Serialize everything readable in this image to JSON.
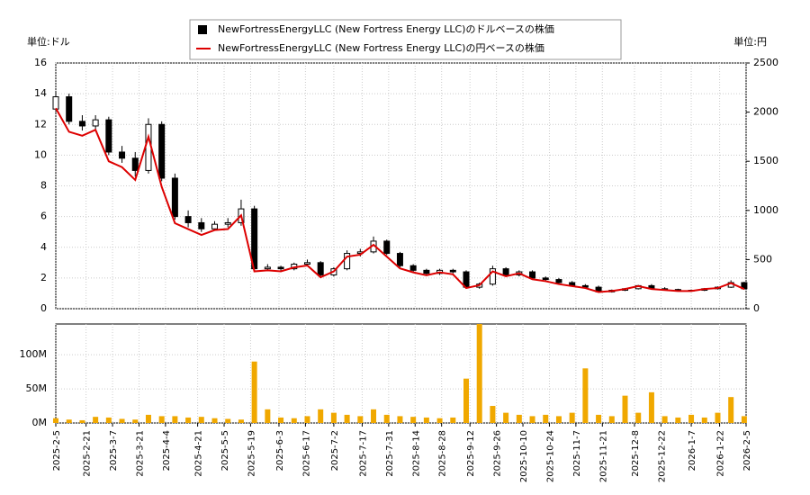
{
  "chart_data": [
    {
      "type": "candlestick",
      "unit_left": "単位:ドル",
      "unit_right": "単位:円",
      "legend": "top",
      "x": [
        "2025-2-5",
        "2025-2-12",
        "2025-2-19",
        "2025-2-26",
        "2025-3-5",
        "2025-3-12",
        "2025-3-19",
        "2025-3-26",
        "2025-4-2",
        "2025-4-9",
        "2025-4-16",
        "2025-4-23",
        "2025-4-30",
        "2025-5-7",
        "2025-5-14",
        "2025-5-21",
        "2025-5-28",
        "2025-6-4",
        "2025-6-11",
        "2025-6-18",
        "2025-6-25",
        "2025-7-2",
        "2025-7-9",
        "2025-7-16",
        "2025-7-23",
        "2025-7-30",
        "2025-8-6",
        "2025-8-13",
        "2025-8-20",
        "2025-8-27",
        "2025-9-3",
        "2025-9-10",
        "2025-9-17",
        "2025-9-24",
        "2025-10-1",
        "2025-10-8",
        "2025-10-15",
        "2025-10-22",
        "2025-10-29",
        "2025-11-5",
        "2025-11-12",
        "2025-11-19",
        "2025-11-26",
        "2025-12-3",
        "2025-12-10",
        "2025-12-17",
        "2025-12-24",
        "2025-12-31",
        "2026-1-7",
        "2026-1-14",
        "2026-1-21",
        "2026-1-28",
        "2026-2-4"
      ],
      "series": [
        {
          "name": "NewFortressEnergyLLC (New Fortress Energy LLC)のドルベースの株価",
          "color": "#000000",
          "open": [
            13.0,
            13.8,
            12.2,
            11.9,
            12.3,
            10.2,
            9.8,
            9.0,
            12.0,
            8.5,
            6.0,
            5.6,
            5.2,
            5.5,
            5.6,
            6.5,
            2.6,
            2.7,
            2.6,
            2.9,
            3.0,
            2.2,
            2.6,
            3.6,
            3.7,
            4.4,
            3.6,
            2.8,
            2.5,
            2.3,
            2.5,
            2.4,
            1.4,
            1.6,
            2.6,
            2.2,
            2.4,
            2.0,
            1.9,
            1.7,
            1.5,
            1.4,
            1.1,
            1.2,
            1.3,
            1.5,
            1.3,
            1.25,
            1.2,
            1.2,
            1.3,
            1.4,
            1.7
          ],
          "high": [
            14.1,
            14.0,
            12.6,
            12.6,
            12.5,
            10.6,
            10.2,
            12.4,
            12.2,
            8.8,
            6.4,
            5.9,
            5.7,
            5.9,
            7.1,
            6.7,
            2.9,
            2.8,
            3.0,
            3.2,
            3.1,
            2.7,
            3.8,
            3.9,
            4.7,
            4.5,
            3.7,
            2.9,
            2.6,
            2.6,
            2.6,
            2.5,
            1.7,
            2.8,
            2.7,
            2.5,
            2.5,
            2.1,
            2.0,
            1.8,
            1.6,
            1.5,
            1.25,
            1.35,
            1.55,
            1.6,
            1.4,
            1.3,
            1.25,
            1.35,
            1.45,
            1.85,
            1.75
          ],
          "low": [
            12.8,
            12.0,
            11.6,
            11.7,
            10.0,
            9.5,
            8.6,
            8.8,
            8.3,
            5.8,
            5.3,
            5.0,
            5.1,
            5.3,
            5.4,
            2.4,
            2.5,
            2.4,
            2.5,
            2.8,
            2.0,
            2.1,
            2.5,
            3.4,
            3.6,
            3.5,
            2.7,
            2.4,
            2.2,
            2.2,
            2.3,
            1.3,
            1.3,
            1.5,
            2.1,
            2.1,
            1.9,
            1.8,
            1.6,
            1.45,
            1.35,
            1.05,
            1.05,
            1.15,
            1.25,
            1.25,
            1.2,
            1.15,
            1.15,
            1.15,
            1.25,
            1.35,
            1.25
          ],
          "values": [
            13.8,
            12.2,
            11.9,
            12.3,
            10.2,
            9.8,
            9.0,
            12.0,
            8.5,
            6.0,
            5.6,
            5.2,
            5.5,
            5.6,
            6.5,
            2.6,
            2.7,
            2.6,
            2.9,
            3.0,
            2.2,
            2.6,
            3.6,
            3.7,
            4.4,
            3.6,
            2.8,
            2.5,
            2.3,
            2.5,
            2.4,
            1.4,
            1.6,
            2.6,
            2.2,
            2.4,
            2.0,
            1.9,
            1.7,
            1.5,
            1.4,
            1.1,
            1.2,
            1.3,
            1.5,
            1.3,
            1.25,
            1.2,
            1.2,
            1.3,
            1.4,
            1.7,
            1.3
          ]
        },
        {
          "name": "NewFortressEnergyLLC (New Fortress Energy LLC)の円ベースの株価",
          "color": "#dd0000",
          "axis": "y2",
          "values": [
            2040,
            1800,
            1760,
            1820,
            1500,
            1440,
            1310,
            1750,
            1240,
            870,
            810,
            750,
            800,
            810,
            950,
            380,
            390,
            380,
            420,
            440,
            320,
            380,
            530,
            550,
            650,
            530,
            410,
            370,
            340,
            370,
            350,
            210,
            240,
            380,
            330,
            360,
            300,
            280,
            250,
            230,
            210,
            170,
            180,
            200,
            230,
            200,
            190,
            180,
            180,
            200,
            210,
            260,
            200
          ]
        }
      ],
      "ylim": [
        0,
        16
      ],
      "yticks": [
        0,
        2,
        4,
        6,
        8,
        10,
        12,
        14,
        16
      ],
      "y2lim": [
        0,
        2500
      ],
      "y2ticks": [
        0,
        500,
        1000,
        1500,
        2000,
        2500
      ],
      "grid": true
    },
    {
      "type": "bar",
      "color": "#f0a800",
      "grid": true,
      "x": [
        "2025-2-5",
        "2025-2-12",
        "2025-2-19",
        "2025-2-26",
        "2025-3-5",
        "2025-3-12",
        "2025-3-19",
        "2025-3-26",
        "2025-4-2",
        "2025-4-9",
        "2025-4-16",
        "2025-4-23",
        "2025-4-30",
        "2025-5-7",
        "2025-5-14",
        "2025-5-21",
        "2025-5-28",
        "2025-6-4",
        "2025-6-11",
        "2025-6-18",
        "2025-6-25",
        "2025-7-2",
        "2025-7-9",
        "2025-7-16",
        "2025-7-23",
        "2025-7-30",
        "2025-8-6",
        "2025-8-13",
        "2025-8-20",
        "2025-8-27",
        "2025-9-3",
        "2025-9-10",
        "2025-9-17",
        "2025-9-24",
        "2025-10-1",
        "2025-10-8",
        "2025-10-15",
        "2025-10-22",
        "2025-10-29",
        "2025-11-5",
        "2025-11-12",
        "2025-11-19",
        "2025-11-26",
        "2025-12-3",
        "2025-12-10",
        "2025-12-17",
        "2025-12-24",
        "2025-12-31",
        "2026-1-7",
        "2026-1-14",
        "2026-1-21",
        "2026-1-28",
        "2026-2-4"
      ],
      "values": [
        7000000,
        5000000,
        4000000,
        9000000,
        8000000,
        6000000,
        5000000,
        12000000,
        10000000,
        10000000,
        8000000,
        9000000,
        7000000,
        6000000,
        5000000,
        90000000,
        20000000,
        8000000,
        7000000,
        10000000,
        20000000,
        15000000,
        12000000,
        10000000,
        20000000,
        12000000,
        10000000,
        9000000,
        8000000,
        7000000,
        8000000,
        65000000,
        145000000,
        25000000,
        15000000,
        12000000,
        10000000,
        12000000,
        10000000,
        15000000,
        80000000,
        12000000,
        10000000,
        40000000,
        15000000,
        45000000,
        10000000,
        8000000,
        12000000,
        8000000,
        15000000,
        38000000,
        10000000
      ],
      "ylim": [
        0,
        145000000
      ],
      "yticks": [
        {
          "value": 0,
          "label": "0M"
        },
        {
          "value": 50000000,
          "label": "50M"
        },
        {
          "value": 100000000,
          "label": "100M"
        }
      ],
      "xticks": [
        "2025-2-5",
        "2025-2-21",
        "2025-3-7",
        "2025-3-21",
        "2025-4-4",
        "2025-4-21",
        "2025-5-5",
        "2025-5-19",
        "2025-6-3",
        "2025-6-17",
        "2025-7-2",
        "2025-7-17",
        "2025-7-31",
        "2025-8-14",
        "2025-8-28",
        "2025-9-12",
        "2025-9-26",
        "2025-10-10",
        "2025-10-24",
        "2025-11-7",
        "2025-11-21",
        "2025-12-8",
        "2025-12-22",
        "2026-1-7",
        "2026-1-22",
        "2026-2-5"
      ]
    }
  ]
}
